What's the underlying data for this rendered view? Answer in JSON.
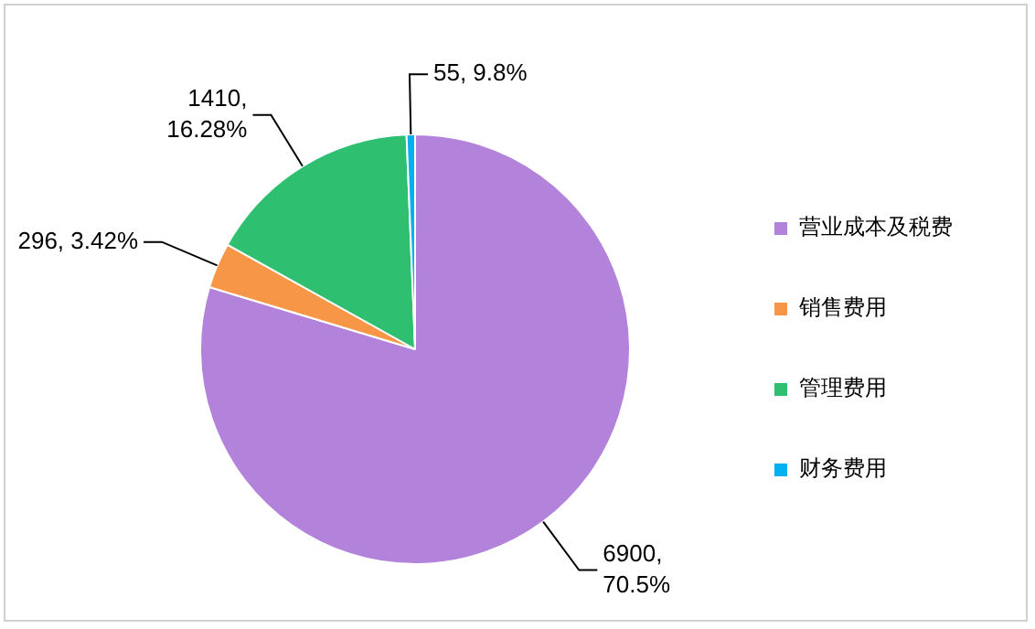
{
  "chart_data": {
    "type": "pie",
    "categories": [
      "营业成本及税费",
      "销售费用",
      "管理费用",
      "财务费用"
    ],
    "values": [
      6900,
      296,
      1410,
      55
    ],
    "colors": [
      "#b383dc",
      "#f79646",
      "#2fbf71",
      "#00b0f0"
    ],
    "value_labels": [
      "6900, 70.5%",
      "296, 3.42%",
      "1410, 16.28%",
      "55, 9.8%"
    ],
    "legend": "right"
  }
}
